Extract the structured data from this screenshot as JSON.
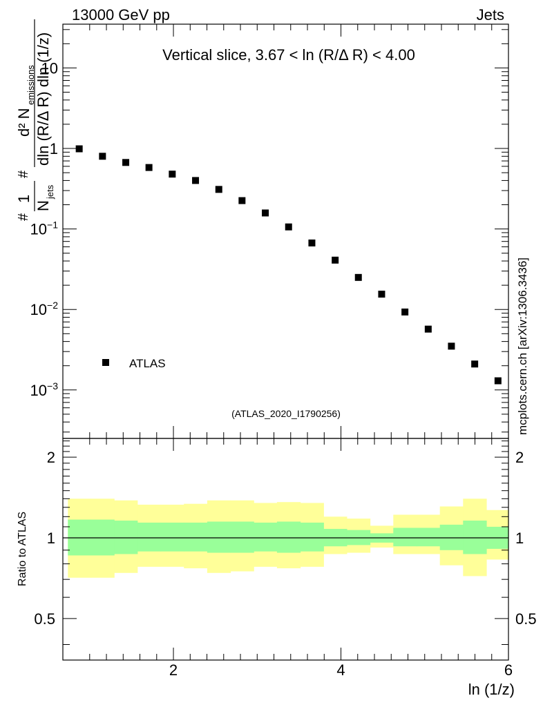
{
  "header": {
    "energy_label": "13000 GeV pp",
    "process_label": "Jets"
  },
  "side_label": "mcplots.cern.ch [arXiv:1306.3436]",
  "chart_data": [
    {
      "type": "scatter",
      "panel": "main",
      "title": "Vertical slice, 3.67 < ln (R/Δ R) < 4.00",
      "analysis_id": "(ATLAS_2020_I1790256)",
      "yscale": "log",
      "ylabel": {
        "hash1": "#",
        "one": "1",
        "N": "N",
        "jets_sub": "jets",
        "hash2": "#",
        "numerator": "d² N",
        "numerator_sub": "emissions",
        "denominator": "dln (R/Δ R) dln (1/z)"
      },
      "xlim": [
        0.68,
        6.0
      ],
      "ylim": [
        0.00025,
        35
      ],
      "y_tick_labels": [
        {
          "value": 0.001,
          "base": "10",
          "exp": "−3"
        },
        {
          "value": 0.01,
          "base": "10",
          "exp": "−2"
        },
        {
          "value": 0.1,
          "base": "10",
          "exp": "−1"
        },
        {
          "value": 1,
          "base": "1",
          "exp": ""
        },
        {
          "value": 10,
          "base": "10",
          "exp": ""
        }
      ],
      "legend": {
        "label": "ATLAS",
        "position": "bottom-left"
      },
      "series": [
        {
          "name": "ATLAS",
          "x": [
            0.875,
            1.153,
            1.431,
            1.708,
            1.986,
            2.264,
            2.542,
            2.819,
            3.097,
            3.375,
            3.653,
            3.931,
            4.208,
            4.486,
            4.764,
            5.042,
            5.319,
            5.597,
            5.875
          ],
          "y": [
            0.99,
            0.8,
            0.67,
            0.58,
            0.48,
            0.4,
            0.31,
            0.225,
            0.158,
            0.106,
            0.067,
            0.041,
            0.025,
            0.0155,
            0.0093,
            0.0057,
            0.0035,
            0.0021,
            0.0013
          ]
        }
      ]
    },
    {
      "type": "area",
      "panel": "ratio",
      "ylabel": "Ratio to ATLAS",
      "xlabel": "ln (1/z)",
      "xlim": [
        0.68,
        6.0
      ],
      "ylim": [
        0.35,
        2.35
      ],
      "x_tick_labels": [
        2,
        4,
        6
      ],
      "y_tick_labels": [
        "0.5",
        "1",
        "2"
      ],
      "y_tick_values": [
        0.5,
        1,
        2
      ],
      "reference_line": 1,
      "bin_edges": [
        0.74,
        1.014,
        1.292,
        1.569,
        1.847,
        2.125,
        2.403,
        2.681,
        2.958,
        3.236,
        3.514,
        3.792,
        4.069,
        4.347,
        4.625,
        4.903,
        5.181,
        5.458,
        5.736,
        6.0
      ],
      "bands": [
        {
          "name": "total uncertainty",
          "color": "#ffff99",
          "low": [
            0.71,
            0.71,
            0.74,
            0.78,
            0.78,
            0.77,
            0.74,
            0.75,
            0.78,
            0.77,
            0.78,
            0.87,
            0.88,
            0.92,
            0.87,
            0.87,
            0.79,
            0.72,
            0.83
          ],
          "high": [
            1.4,
            1.4,
            1.38,
            1.33,
            1.33,
            1.34,
            1.38,
            1.38,
            1.35,
            1.36,
            1.35,
            1.2,
            1.18,
            1.11,
            1.22,
            1.22,
            1.31,
            1.4,
            1.27
          ]
        },
        {
          "name": "statistical uncertainty",
          "color": "#99ff99",
          "low": [
            0.86,
            0.86,
            0.87,
            0.89,
            0.89,
            0.89,
            0.88,
            0.88,
            0.89,
            0.88,
            0.89,
            0.93,
            0.94,
            0.96,
            0.93,
            0.93,
            0.9,
            0.87,
            0.91
          ],
          "high": [
            1.17,
            1.17,
            1.16,
            1.14,
            1.14,
            1.14,
            1.15,
            1.15,
            1.14,
            1.15,
            1.14,
            1.08,
            1.07,
            1.04,
            1.09,
            1.09,
            1.12,
            1.16,
            1.1
          ]
        }
      ],
      "colors": {
        "reference_line": "#000000"
      }
    }
  ]
}
